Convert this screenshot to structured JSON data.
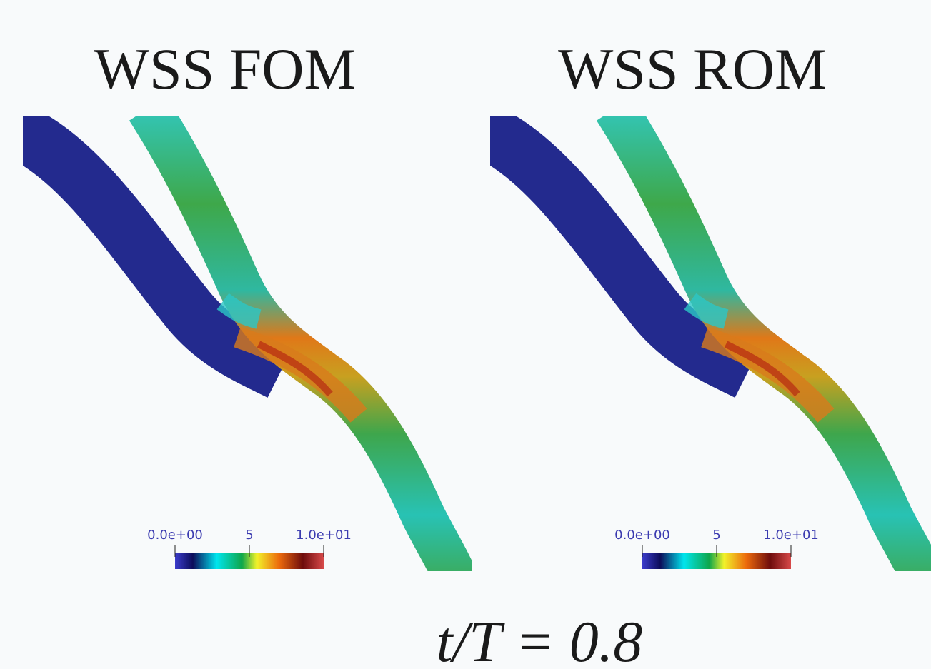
{
  "panels": [
    {
      "title": "WSS FOM",
      "colorbar": {
        "range": [
          0,
          10
        ],
        "ticks": [
          {
            "value": 0,
            "label": "0.0e+00"
          },
          5,
          {
            "value": 10,
            "label": "1.0e+01"
          }
        ]
      }
    },
    {
      "title": "WSS ROM",
      "colorbar": {
        "range": [
          0,
          10
        ],
        "ticks": [
          {
            "value": 0,
            "label": "0.0e+00"
          },
          5,
          {
            "value": 10,
            "label": "1.0e+01"
          }
        ]
      }
    }
  ],
  "caption": "t/T = 0.8"
}
